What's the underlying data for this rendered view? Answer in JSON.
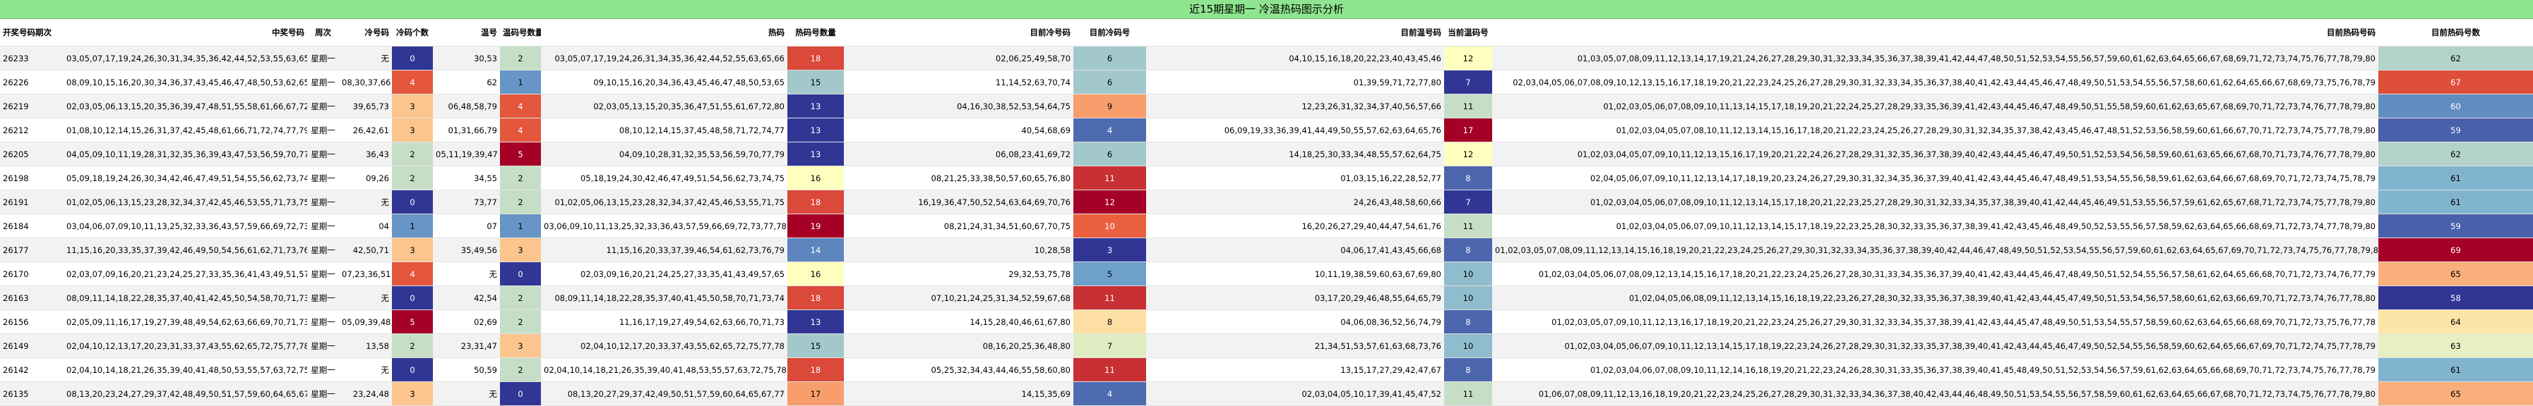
{
  "header_title": "近15期星期一 冷温热码图示分析",
  "columns": [
    "开奖号码期次",
    "",
    "中奖号码",
    "周次",
    "冷号码",
    "冷码个数",
    "温号",
    "温码号数量",
    "热码",
    "热码号数量",
    "目前冷号码",
    "目前冷码号",
    "目前温号码",
    "当前温码号",
    "目前热码号码",
    "目前热码号码数",
    "目前热码号数"
  ],
  "headers": {
    "period": "开奖号码期次",
    "winning": "中奖号码",
    "weekday": "周次",
    "cold": "冷号码",
    "cold_count": "冷码个数",
    "warm": "温号",
    "warm_count": "温码号数量",
    "hot": "热码",
    "hot_count": "热码号数量",
    "cur_cold": "目前冷号码",
    "cur_cold_count": "目前冷码号",
    "cur_warm": "目前温号码",
    "cur_warm_count": "当前温码号",
    "cur_hot": "目前热码号码",
    "cur_hot_count": "目前热码号数"
  },
  "rows": [
    {
      "period": "26233",
      "winning": "03,05,07,17,19,24,26,30,31,34,35,36,42,44,52,53,55,63,65,66",
      "weekday": "星期一",
      "cold": "无",
      "cold_count": "0",
      "warm": "30,53",
      "warm_count": "2",
      "hot": "03,05,07,17,19,24,26,31,34,35,36,42,44,52,55,63,65,66",
      "hot_count": "18",
      "cur_cold": "02,06,25,49,58,70",
      "cur_cold_count": "6",
      "cur_warm": "04,10,15,16,18,20,22,23,40,43,45,46",
      "cur_warm_count": "12",
      "cur_hot": "01,03,05,07,08,09,11,12,13,14,17,19,21,24,26,27,28,29,30,31,32,33,34,35,36,37,38,39,41,42,44,47,48,50,51,52,53,54,55,56,57,59,60,61,62,63,64,65,66,67,68,69,71,72,73,74,75,76,77,78,79,80",
      "cur_hot_count": "62"
    },
    {
      "period": "26226",
      "winning": "08,09,10,15,16,20,30,34,36,37,43,45,46,47,48,50,53,62,65,66",
      "weekday": "星期一",
      "cold": "08,30,37,66",
      "cold_count": "4",
      "warm": "62",
      "warm_count": "1",
      "hot": "09,10,15,16,20,34,36,43,45,46,47,48,50,53,65",
      "hot_count": "15",
      "cur_cold": "11,14,52,63,70,74",
      "cur_cold_count": "6",
      "cur_warm": "01,39,59,71,72,77,80",
      "cur_warm_count": "7",
      "cur_hot": "02,03,04,05,06,07,08,09,10,12,13,15,16,17,18,19,20,21,22,23,24,25,26,27,28,29,30,31,32,33,34,35,36,37,38,40,41,42,43,44,45,46,47,48,49,50,51,53,54,55,56,57,58,60,61,62,64,65,66,67,68,69,73,75,76,78,79",
      "cur_hot_count": "67"
    },
    {
      "period": "26219",
      "winning": "02,03,05,06,13,15,20,35,36,39,47,48,51,55,58,61,66,67,72,73,79,80",
      "weekday": "星期一",
      "cold": "39,65,73",
      "cold_count": "3",
      "warm": "06,48,58,79",
      "warm_count": "4",
      "hot": "02,03,05,13,15,20,35,36,47,51,55,61,67,72,80",
      "hot_count": "13",
      "cur_cold": "04,16,30,38,52,53,54,64,75",
      "cur_cold_count": "9",
      "cur_warm": "12,23,26,31,32,34,37,40,56,57,66",
      "cur_warm_count": "11",
      "cur_hot": "01,02,03,05,06,07,08,09,10,11,13,14,15,17,18,19,20,21,22,24,25,27,28,29,33,35,36,39,41,42,43,44,45,46,47,48,49,50,51,55,58,59,60,61,62,63,65,67,68,69,70,71,72,73,74,76,77,78,79,80",
      "cur_hot_count": "60"
    },
    {
      "period": "26212",
      "winning": "01,08,10,12,14,15,26,31,37,42,45,48,61,66,71,72,74,77,79",
      "weekday": "星期一",
      "cold": "26,42,61",
      "cold_count": "3",
      "warm": "01,31,66,79",
      "warm_count": "4",
      "hot": "08,10,12,14,15,37,45,48,58,71,72,74,77",
      "hot_count": "13",
      "cur_cold": "40,54,68,69",
      "cur_cold_count": "4",
      "cur_warm": "06,09,19,33,36,39,41,44,49,50,55,57,62,63,64,65,76",
      "cur_warm_count": "17",
      "cur_hot": "01,02,03,04,05,07,08,10,11,12,13,14,15,16,17,18,20,21,22,23,24,25,26,27,28,29,30,31,32,34,35,37,38,42,43,45,46,47,48,51,52,53,56,58,59,60,61,66,67,70,71,72,73,74,75,77,78,79,80",
      "cur_hot_count": "59"
    },
    {
      "period": "26205",
      "winning": "04,05,09,10,11,19,28,31,32,35,36,39,43,47,53,56,59,70,77,79",
      "weekday": "星期一",
      "cold": "36,43",
      "cold_count": "2",
      "warm": "05,11,19,39,47",
      "warm_count": "5",
      "hot": "04,09,10,28,31,32,35,53,56,59,70,77,79",
      "hot_count": "13",
      "cur_cold": "06,08,23,41,69,72",
      "cur_cold_count": "6",
      "cur_warm": "14,18,25,30,33,34,48,55,57,62,64,75",
      "cur_warm_count": "12",
      "cur_hot": "01,02,03,04,05,07,09,10,11,12,13,15,16,17,19,20,21,22,24,26,27,28,29,31,32,35,36,37,38,39,40,42,43,44,45,46,47,49,50,51,52,53,54,56,58,59,60,61,63,65,66,67,68,70,71,73,74,76,77,78,79,80",
      "cur_hot_count": "62"
    },
    {
      "period": "26198",
      "winning": "05,09,18,19,24,26,30,34,42,46,47,49,51,54,55,56,62,73,74,75",
      "weekday": "星期一",
      "cold": "09,26",
      "cold_count": "2",
      "warm": "34,55",
      "warm_count": "2",
      "hot": "05,18,19,24,30,42,46,47,49,51,54,56,62,73,74,75",
      "hot_count": "16",
      "cur_cold": "08,21,25,33,38,50,57,60,65,76,80",
      "cur_cold_count": "11",
      "cur_warm": "01,03,15,16,22,28,52,77",
      "cur_warm_count": "8",
      "cur_hot": "02,04,05,06,07,09,10,11,12,13,14,17,18,19,20,23,24,26,27,29,30,31,32,34,35,36,37,39,40,41,42,43,44,45,46,47,48,49,51,53,54,55,56,58,59,61,62,63,64,66,67,68,69,70,71,72,73,74,75,78,79",
      "cur_hot_count": "61"
    },
    {
      "period": "26191",
      "winning": "01,02,05,06,13,15,23,28,32,34,37,42,45,46,53,55,71,73,75,77",
      "weekday": "星期一",
      "cold": "无",
      "cold_count": "0",
      "warm": "73,77",
      "warm_count": "2",
      "hot": "01,02,05,06,13,15,23,28,32,34,37,42,45,46,53,55,71,75",
      "hot_count": "18",
      "cur_cold": "16,19,36,47,50,52,54,63,64,69,70,76",
      "cur_cold_count": "12",
      "cur_warm": "24,26,43,48,58,60,66",
      "cur_warm_count": "7",
      "cur_hot": "01,02,03,04,05,06,07,08,09,10,11,12,13,14,15,17,18,20,21,22,23,25,27,28,29,30,31,32,33,34,35,37,38,39,40,41,42,44,45,46,49,51,53,55,56,57,59,61,62,65,67,68,71,72,73,74,75,77,78,79,80",
      "cur_hot_count": "61"
    },
    {
      "period": "26184",
      "winning": "03,04,06,07,09,10,11,13,25,32,33,36,43,57,59,66,69,72,73,77,78",
      "weekday": "星期一",
      "cold": "04",
      "cold_count": "1",
      "warm": "07",
      "warm_count": "1",
      "hot": "03,06,09,10,11,13,25,32,33,36,43,57,59,66,69,72,73,77,78",
      "hot_count": "19",
      "cur_cold": "08,21,24,31,34,51,60,67,70,75",
      "cur_cold_count": "10",
      "cur_warm": "16,20,26,27,29,40,44,47,54,61,76",
      "cur_warm_count": "11",
      "cur_hot": "01,02,03,04,05,06,07,09,10,11,12,13,14,15,17,18,19,22,23,25,28,30,32,33,35,36,37,38,39,41,42,43,45,46,48,49,50,52,53,55,56,57,58,59,62,63,64,65,66,68,69,71,72,73,74,77,78,79,80",
      "cur_hot_count": "59"
    },
    {
      "period": "26177",
      "winning": "11,15,16,20,33,35,37,39,42,46,49,50,54,56,61,62,71,73,76,79",
      "weekday": "星期一",
      "cold": "42,50,71",
      "cold_count": "3",
      "warm": "35,49,56",
      "warm_count": "3",
      "hot": "11,15,16,20,33,37,39,46,54,61,62,73,76,79",
      "hot_count": "14",
      "cur_cold": "10,28,58",
      "cur_cold_count": "3",
      "cur_warm": "04,06,17,41,43,45,66,68",
      "cur_warm_count": "8",
      "cur_hot": "01,02,03,05,07,08,09,11,12,13,14,15,16,18,19,20,21,22,23,24,25,26,27,29,30,31,32,33,34,35,36,37,38,39,40,42,44,46,47,48,49,50,51,52,53,54,55,56,57,59,60,61,62,63,64,65,67,69,70,71,72,73,74,75,76,77,78,79,80",
      "cur_hot_count": "69"
    },
    {
      "period": "26170",
      "winning": "02,03,07,09,16,20,21,23,24,25,27,33,35,36,41,43,49,51,57,65",
      "weekday": "星期一",
      "cold": "07,23,36,51",
      "cold_count": "4",
      "warm": "无",
      "warm_count": "0",
      "hot": "02,03,09,16,20,21,24,25,27,33,35,41,43,49,57,65",
      "hot_count": "16",
      "cur_cold": "29,32,53,75,78",
      "cur_cold_count": "5",
      "cur_warm": "10,11,19,38,59,60,63,67,69,80",
      "cur_warm_count": "10",
      "cur_hot": "01,02,03,04,05,06,07,08,09,12,13,14,15,16,17,18,20,21,22,23,24,25,26,27,28,30,31,33,34,35,36,37,39,40,41,42,43,44,45,46,47,48,49,50,51,52,54,55,56,57,58,61,62,64,65,66,68,70,71,72,73,74,76,77,79",
      "cur_hot_count": "65"
    },
    {
      "period": "26163",
      "winning": "08,09,11,14,18,22,28,35,37,40,41,42,45,50,54,58,70,71,73,74",
      "weekday": "星期一",
      "cold": "无",
      "cold_count": "0",
      "warm": "42,54",
      "warm_count": "2",
      "hot": "08,09,11,14,18,22,28,35,37,40,41,45,50,58,70,71,73,74",
      "hot_count": "18",
      "cur_cold": "07,10,21,24,25,31,34,52,59,67,68",
      "cur_cold_count": "11",
      "cur_warm": "03,17,20,29,46,48,55,64,65,79",
      "cur_warm_count": "10",
      "cur_hot": "01,02,04,05,06,08,09,11,12,13,14,15,16,18,19,22,23,26,27,28,30,32,33,35,36,37,38,39,40,41,42,43,44,45,47,49,50,51,53,54,56,57,58,60,61,62,63,66,69,70,71,72,73,74,76,77,78,80",
      "cur_hot_count": "58"
    },
    {
      "period": "26156",
      "winning": "02,05,09,11,16,17,19,27,39,48,49,54,62,63,66,69,70,71,73,76",
      "weekday": "星期一",
      "cold": "05,09,39,48,76",
      "cold_count": "5",
      "warm": "02,69",
      "warm_count": "2",
      "hot": "11,16,17,19,27,49,54,62,63,66,70,71,73",
      "hot_count": "13",
      "cur_cold": "14,15,28,40,46,61,67,80",
      "cur_cold_count": "8",
      "cur_warm": "04,06,08,36,52,56,74,79",
      "cur_warm_count": "8",
      "cur_hot": "01,02,03,05,07,09,10,11,12,13,16,17,18,19,20,21,22,23,24,25,26,27,29,30,31,32,33,34,35,37,38,39,41,42,43,44,45,47,48,49,50,51,53,54,55,57,58,59,60,62,63,64,65,66,68,69,70,71,72,73,75,76,77,78",
      "cur_hot_count": "64"
    },
    {
      "period": "26149",
      "winning": "02,04,10,12,13,17,20,23,31,33,37,43,55,62,65,72,75,77,78",
      "weekday": "星期一",
      "cold": "13,58",
      "cold_count": "2",
      "warm": "23,31,47",
      "warm_count": "3",
      "hot": "02,04,10,12,17,20,33,37,43,55,62,65,72,75,77,78",
      "hot_count": "15",
      "cur_cold": "08,16,20,25,36,48,80",
      "cur_cold_count": "7",
      "cur_warm": "21,34,51,53,57,61,63,68,73,76",
      "cur_warm_count": "10",
      "cur_hot": "01,02,03,04,05,06,07,09,10,11,12,13,14,15,17,18,19,22,23,24,26,27,28,29,30,31,32,33,35,37,38,39,40,41,42,43,44,45,46,47,49,50,52,54,55,56,58,59,60,62,64,65,66,67,69,70,71,72,74,75,77,78,79",
      "cur_hot_count": "63"
    },
    {
      "period": "26142",
      "winning": "02,04,10,14,18,21,26,35,39,40,41,48,50,53,55,57,63,72,75,78",
      "weekday": "星期一",
      "cold": "无",
      "cold_count": "0",
      "warm": "50,59",
      "warm_count": "2",
      "hot": "02,04,10,14,18,21,26,35,39,40,41,48,53,55,57,63,72,75,78",
      "hot_count": "18",
      "cur_cold": "05,25,32,34,43,44,46,55,58,60,80",
      "cur_cold_count": "11",
      "cur_warm": "13,15,17,27,29,42,47,67",
      "cur_warm_count": "8",
      "cur_hot": "01,02,03,04,06,07,08,09,10,11,12,14,16,18,19,20,21,22,23,24,26,28,30,31,33,35,36,37,38,39,40,41,45,48,49,50,51,52,53,54,56,57,59,61,62,63,64,65,66,68,69,70,71,72,73,74,75,76,77,78,79",
      "cur_hot_count": "61"
    },
    {
      "period": "26135",
      "winning": "08,13,20,23,24,27,29,37,42,48,49,50,51,57,59,60,64,65,67,77",
      "weekday": "星期一",
      "cold": "23,24,48",
      "cold_count": "3",
      "warm": "无",
      "warm_count": "0",
      "hot": "08,13,20,27,29,37,42,49,50,51,57,59,60,64,65,67,77",
      "hot_count": "17",
      "cur_cold": "14,15,35,69",
      "cur_cold_count": "4",
      "cur_warm": "02,03,04,05,10,17,39,41,45,47,52",
      "cur_warm_count": "11",
      "cur_hot": "01,06,07,08,09,11,12,13,16,18,19,20,21,22,23,24,25,26,27,28,29,30,31,32,33,34,36,37,38,40,42,43,44,46,48,49,50,51,53,54,55,56,57,58,59,60,61,62,63,64,65,66,67,68,70,71,72,73,74,75,76,77,78,79,80",
      "cur_hot_count": "65"
    }
  ]
}
